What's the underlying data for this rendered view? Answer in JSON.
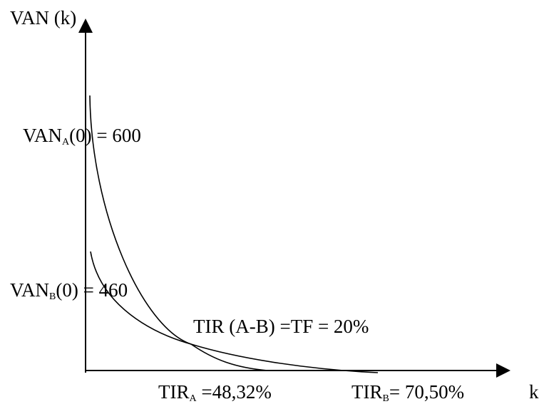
{
  "y_axis_label": "VAN (k)",
  "x_axis_label": "k",
  "van_a": {
    "prefix": "VAN",
    "sub": "A",
    "suffix": "(0) = 600"
  },
  "van_b": {
    "prefix": "VAN",
    "sub": "B",
    "suffix": "(0) = 460"
  },
  "crossover_label": "TIR (A-B) =TF = 20%",
  "tir_a": {
    "prefix": "TIR",
    "sub": "A",
    "suffix": " =48,32%"
  },
  "tir_b": {
    "prefix": "TIR",
    "sub": "B",
    "suffix": "= 70,50%"
  },
  "colors": {
    "ink": "#000000",
    "background": "#ffffff"
  },
  "curves": [
    {
      "id": "A",
      "van_at_zero": 600,
      "tir_percent": 48.32
    },
    {
      "id": "B",
      "van_at_zero": 460,
      "tir_percent": 70.5
    }
  ],
  "crossover": {
    "rate_percent": 20
  }
}
